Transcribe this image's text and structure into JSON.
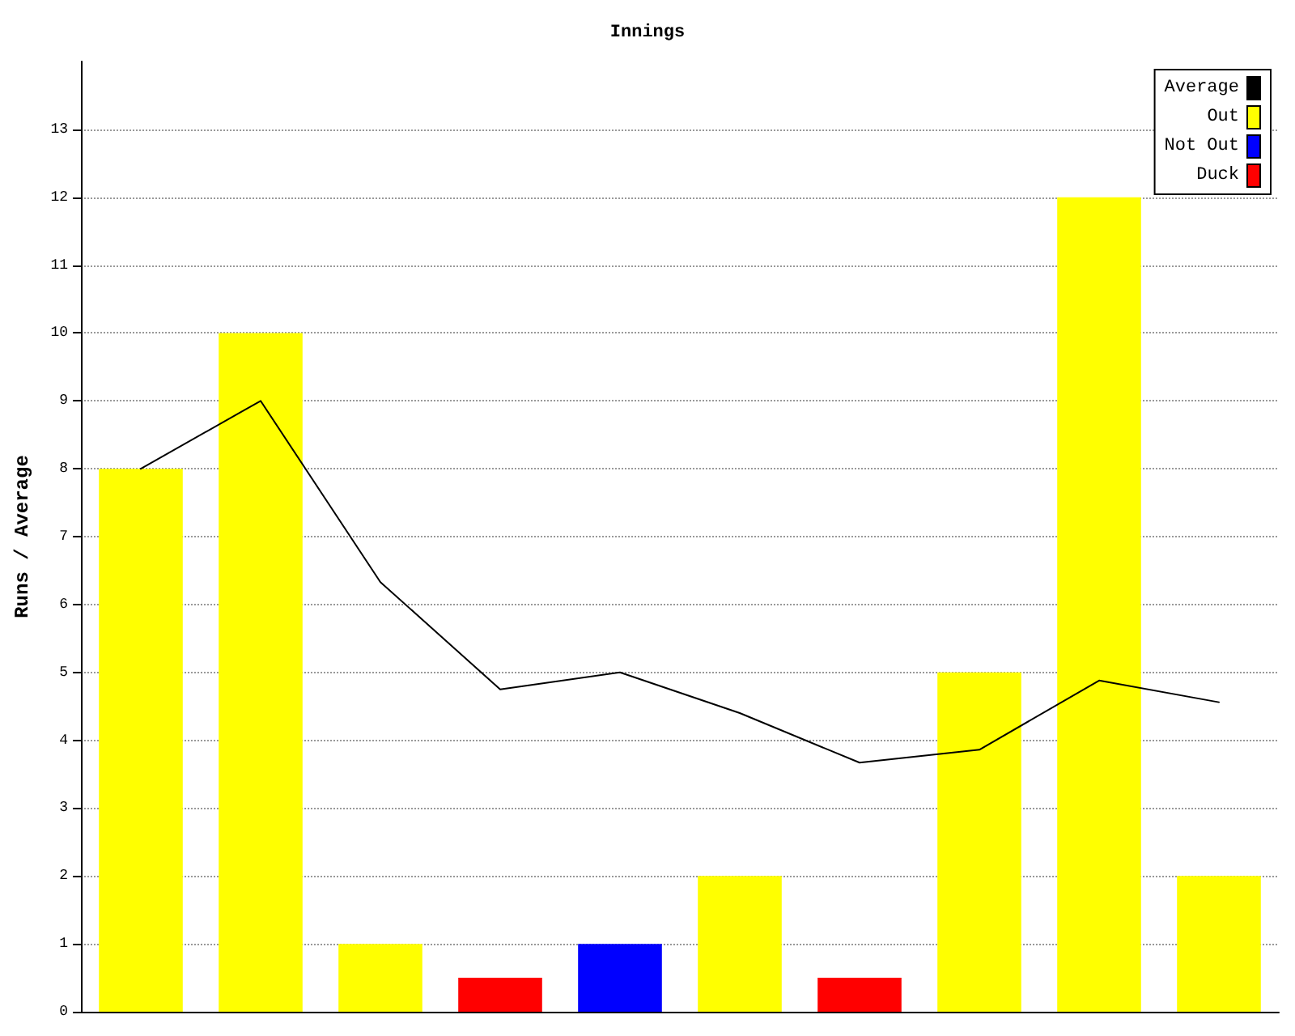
{
  "chart_data": {
    "type": "bar",
    "title": "Innings",
    "ylabel": "Runs / Average",
    "categories": [
      null,
      null,
      null,
      null,
      null,
      null,
      null,
      null,
      null,
      null
    ],
    "stacked": true,
    "series": [
      {
        "name": "Average",
        "type": "line",
        "color": "#000000",
        "values": [
          8,
          9,
          6.33,
          4.75,
          5,
          4.4,
          3.67,
          3.86,
          4.88,
          4.56
        ]
      },
      {
        "name": "Out",
        "color": "#ffff00",
        "values": [
          8,
          10,
          1,
          null,
          null,
          2,
          null,
          5,
          12,
          2
        ]
      },
      {
        "name": "Not Out",
        "color": "#0000ff",
        "values": [
          null,
          null,
          null,
          null,
          1,
          null,
          null,
          null,
          null,
          null
        ]
      },
      {
        "name": "Duck",
        "color": "#ff0000",
        "values": [
          null,
          null,
          null,
          0.5,
          null,
          null,
          0.5,
          null,
          null,
          null
        ]
      }
    ],
    "ylim": [
      0,
      14
    ],
    "yticks": [
      0,
      1,
      2,
      3,
      4,
      5,
      6,
      7,
      8,
      9,
      10,
      11,
      12,
      13
    ],
    "grid": "y",
    "legend": "top right",
    "marker": "none",
    "line_style": "solid"
  }
}
